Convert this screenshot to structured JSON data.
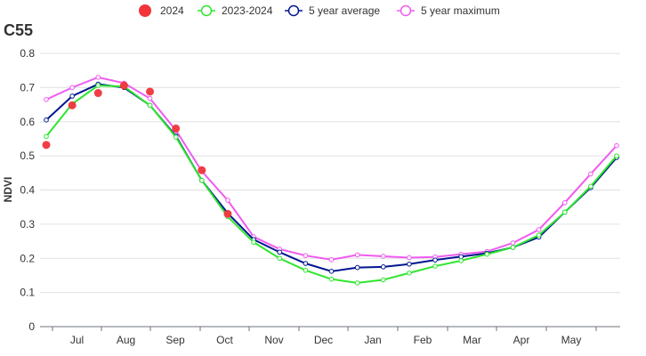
{
  "chart_data": {
    "type": "line",
    "title": "C55",
    "ylabel": "NDVI",
    "xlabel": "",
    "ylim": [
      0,
      0.8
    ],
    "yticks": [
      "0",
      "0.1",
      "0.2",
      "0.3",
      "0.4",
      "0.5",
      "0.6",
      "0.7",
      "0.8"
    ],
    "x_month_labels": [
      "Jul",
      "Aug",
      "Sep",
      "Oct",
      "Nov",
      "Dec",
      "Jan",
      "Feb",
      "Mar",
      "Apr",
      "May"
    ],
    "grid": true,
    "legend_position": "top",
    "series": [
      {
        "name": "2024",
        "style": "markers",
        "color": "#f0343a",
        "values": [
          0.532,
          0.648,
          0.684,
          0.706,
          0.688,
          0.58,
          0.458,
          0.33,
          null,
          null,
          null,
          null,
          null,
          null,
          null,
          null,
          null,
          null,
          null,
          null,
          null,
          null,
          null
        ]
      },
      {
        "name": "2023-2024",
        "style": "line",
        "color": "#2ee62e",
        "values": [
          0.557,
          0.652,
          0.706,
          0.703,
          0.648,
          0.555,
          0.428,
          0.322,
          0.247,
          0.2,
          0.165,
          0.139,
          0.128,
          0.137,
          0.157,
          0.177,
          0.193,
          0.212,
          0.232,
          0.268,
          0.335,
          0.411,
          0.5
        ]
      },
      {
        "name": "5 year average",
        "style": "line",
        "color": "#00178f",
        "values": [
          0.605,
          0.675,
          0.71,
          0.7,
          0.648,
          0.558,
          0.428,
          0.332,
          0.255,
          0.218,
          0.185,
          0.162,
          0.173,
          0.175,
          0.183,
          0.195,
          0.205,
          0.215,
          0.232,
          0.262,
          0.335,
          0.407,
          0.495
        ]
      },
      {
        "name": "5 year maximum",
        "style": "line",
        "color": "#f05af0",
        "values": [
          0.665,
          0.7,
          0.73,
          0.713,
          0.668,
          0.575,
          0.455,
          0.37,
          0.263,
          0.227,
          0.208,
          0.196,
          0.21,
          0.206,
          0.202,
          0.204,
          0.212,
          0.22,
          0.245,
          0.284,
          0.363,
          0.447,
          0.53
        ]
      }
    ]
  }
}
